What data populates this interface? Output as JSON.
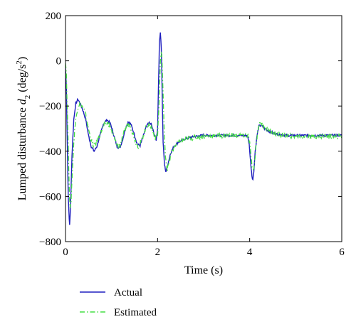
{
  "chart_data": {
    "type": "line",
    "xlabel": "Time (s)",
    "ylabel": {
      "prefix": "Lumped disturbance ",
      "var": "d",
      "sub": "2",
      "units_open": " (deg/s",
      "units_sup": "2",
      "units_close": ")"
    },
    "xlim": [
      0,
      6
    ],
    "ylim": [
      -800,
      200
    ],
    "xticks": [
      0,
      2,
      4,
      6
    ],
    "yticks": [
      200,
      0,
      -200,
      -400,
      -600,
      -800
    ],
    "grid": false,
    "legend_position": "bottom-left, below plot",
    "series": [
      {
        "name": "Actual",
        "color": "#1f1fbf",
        "style": "solid",
        "points": [
          [
            0.0,
            -30
          ],
          [
            0.02,
            -120
          ],
          [
            0.04,
            -380
          ],
          [
            0.06,
            -600
          ],
          [
            0.08,
            -700
          ],
          [
            0.09,
            -725
          ],
          [
            0.11,
            -640
          ],
          [
            0.14,
            -420
          ],
          [
            0.18,
            -260
          ],
          [
            0.22,
            -190
          ],
          [
            0.27,
            -170
          ],
          [
            0.32,
            -190
          ],
          [
            0.38,
            -220
          ],
          [
            0.44,
            -260
          ],
          [
            0.5,
            -330
          ],
          [
            0.56,
            -380
          ],
          [
            0.62,
            -400
          ],
          [
            0.68,
            -380
          ],
          [
            0.75,
            -330
          ],
          [
            0.82,
            -280
          ],
          [
            0.9,
            -260
          ],
          [
            0.98,
            -280
          ],
          [
            1.05,
            -330
          ],
          [
            1.12,
            -380
          ],
          [
            1.18,
            -385
          ],
          [
            1.24,
            -350
          ],
          [
            1.3,
            -300
          ],
          [
            1.36,
            -270
          ],
          [
            1.42,
            -280
          ],
          [
            1.5,
            -330
          ],
          [
            1.56,
            -370
          ],
          [
            1.62,
            -375
          ],
          [
            1.68,
            -340
          ],
          [
            1.74,
            -300
          ],
          [
            1.8,
            -275
          ],
          [
            1.86,
            -280
          ],
          [
            1.92,
            -320
          ],
          [
            1.97,
            -350
          ],
          [
            2.0,
            -300
          ],
          [
            2.02,
            -100
          ],
          [
            2.04,
            80
          ],
          [
            2.06,
            130
          ],
          [
            2.08,
            60
          ],
          [
            2.1,
            -150
          ],
          [
            2.12,
            -360
          ],
          [
            2.15,
            -460
          ],
          [
            2.18,
            -490
          ],
          [
            2.22,
            -460
          ],
          [
            2.28,
            -410
          ],
          [
            2.35,
            -380
          ],
          [
            2.45,
            -360
          ],
          [
            2.6,
            -345
          ],
          [
            2.8,
            -335
          ],
          [
            3.0,
            -330
          ],
          [
            3.2,
            -330
          ],
          [
            3.4,
            -330
          ],
          [
            3.6,
            -330
          ],
          [
            3.8,
            -330
          ],
          [
            3.95,
            -330
          ],
          [
            3.99,
            -370
          ],
          [
            4.02,
            -450
          ],
          [
            4.05,
            -510
          ],
          [
            4.07,
            -525
          ],
          [
            4.09,
            -490
          ],
          [
            4.12,
            -400
          ],
          [
            4.16,
            -330
          ],
          [
            4.2,
            -290
          ],
          [
            4.25,
            -285
          ],
          [
            4.32,
            -300
          ],
          [
            4.45,
            -315
          ],
          [
            4.6,
            -325
          ],
          [
            4.8,
            -330
          ],
          [
            5.0,
            -330
          ],
          [
            5.2,
            -330
          ],
          [
            5.4,
            -330
          ],
          [
            5.6,
            -330
          ],
          [
            5.8,
            -330
          ],
          [
            6.0,
            -330
          ]
        ]
      },
      {
        "name": "Estimated",
        "color": "#44dd44",
        "style": "dash-dot",
        "points": [
          [
            0.0,
            0
          ],
          [
            0.02,
            -60
          ],
          [
            0.05,
            -300
          ],
          [
            0.08,
            -550
          ],
          [
            0.1,
            -660
          ],
          [
            0.12,
            -620
          ],
          [
            0.16,
            -440
          ],
          [
            0.2,
            -300
          ],
          [
            0.25,
            -220
          ],
          [
            0.3,
            -190
          ],
          [
            0.36,
            -200
          ],
          [
            0.42,
            -225
          ],
          [
            0.48,
            -280
          ],
          [
            0.54,
            -340
          ],
          [
            0.6,
            -375
          ],
          [
            0.66,
            -365
          ],
          [
            0.72,
            -340
          ],
          [
            0.8,
            -300
          ],
          [
            0.87,
            -275
          ],
          [
            0.95,
            -280
          ],
          [
            1.02,
            -320
          ],
          [
            1.09,
            -360
          ],
          [
            1.15,
            -380
          ],
          [
            1.21,
            -360
          ],
          [
            1.27,
            -320
          ],
          [
            1.33,
            -285
          ],
          [
            1.4,
            -285
          ],
          [
            1.46,
            -320
          ],
          [
            1.53,
            -360
          ],
          [
            1.59,
            -380
          ],
          [
            1.65,
            -355
          ],
          [
            1.71,
            -315
          ],
          [
            1.77,
            -285
          ],
          [
            1.84,
            -285
          ],
          [
            1.9,
            -315
          ],
          [
            1.96,
            -345
          ],
          [
            2.0,
            -330
          ],
          [
            2.03,
            -200
          ],
          [
            2.06,
            0
          ],
          [
            2.09,
            40
          ],
          [
            2.11,
            -80
          ],
          [
            2.14,
            -290
          ],
          [
            2.17,
            -420
          ],
          [
            2.21,
            -480
          ],
          [
            2.25,
            -450
          ],
          [
            2.31,
            -400
          ],
          [
            2.4,
            -370
          ],
          [
            2.55,
            -350
          ],
          [
            2.75,
            -340
          ],
          [
            3.0,
            -335
          ],
          [
            3.2,
            -332
          ],
          [
            3.4,
            -330
          ],
          [
            3.6,
            -330
          ],
          [
            3.8,
            -330
          ],
          [
            3.97,
            -330
          ],
          [
            4.01,
            -380
          ],
          [
            4.05,
            -470
          ],
          [
            4.08,
            -490
          ],
          [
            4.11,
            -440
          ],
          [
            4.15,
            -350
          ],
          [
            4.19,
            -290
          ],
          [
            4.24,
            -270
          ],
          [
            4.3,
            -290
          ],
          [
            4.42,
            -310
          ],
          [
            4.58,
            -325
          ],
          [
            4.8,
            -332
          ],
          [
            5.0,
            -333
          ],
          [
            5.2,
            -333
          ],
          [
            5.4,
            -333
          ],
          [
            5.6,
            -333
          ],
          [
            5.8,
            -333
          ],
          [
            6.0,
            -333
          ]
        ]
      }
    ]
  }
}
